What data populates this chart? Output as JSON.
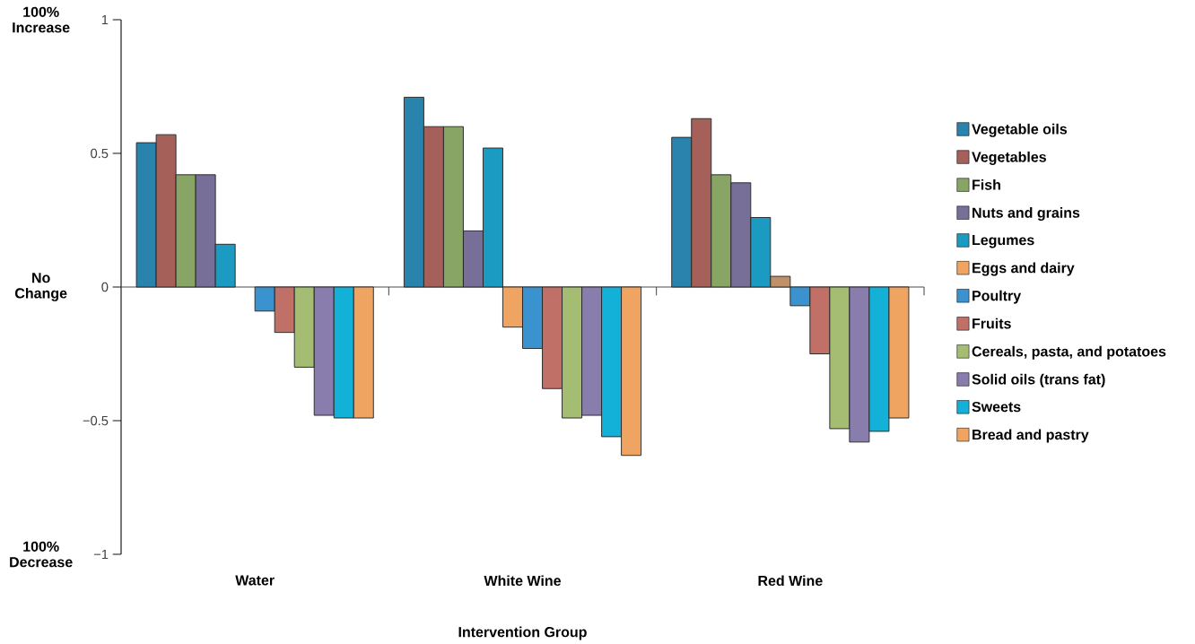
{
  "chart_data": {
    "type": "bar",
    "xlabel": "Intervention Group",
    "categories": [
      "Water",
      "White Wine",
      "Red Wine"
    ],
    "ylim": [
      -1,
      1
    ],
    "yticks": [
      1,
      0.5,
      0,
      {
        "value": -0.5,
        "label": "−0.5"
      },
      {
        "value": -1,
        "label": "−1"
      }
    ],
    "legend": "right",
    "annotations": [
      "100% Increase",
      "No Change",
      "100% Decrease"
    ],
    "series": [
      {
        "name": "Vegetable oils",
        "color": "#2a83ad",
        "values": [
          0.54,
          0.71,
          0.56
        ]
      },
      {
        "name": "Vegetables",
        "color": "#a5605a",
        "values": [
          0.57,
          0.6,
          0.63
        ]
      },
      {
        "name": "Fish",
        "color": "#88a565",
        "values": [
          0.42,
          0.6,
          0.42
        ]
      },
      {
        "name": "Nuts and grains",
        "color": "#776f97",
        "values": [
          0.42,
          0.21,
          0.39
        ]
      },
      {
        "name": "Legumes",
        "color": "#1b9bc2",
        "values": [
          0.16,
          0.52,
          0.26
        ]
      },
      {
        "name": "Eggs and dairy",
        "color": "#f0a462",
        "colors": [
          null,
          "#f0a462",
          "#c09068"
        ],
        "values": [
          null,
          -0.15,
          0.04
        ]
      },
      {
        "name": "Poultry",
        "color": "#3a93cf",
        "values": [
          -0.09,
          -0.23,
          -0.07
        ]
      },
      {
        "name": "Fruits",
        "color": "#c07066",
        "values": [
          -0.17,
          -0.38,
          -0.25
        ]
      },
      {
        "name": "Cereals, pasta, and potatoes",
        "color": "#a4bd73",
        "values": [
          -0.3,
          -0.49,
          -0.53
        ]
      },
      {
        "name": "Solid oils (trans fat)",
        "color": "#897dae",
        "values": [
          -0.48,
          -0.48,
          -0.58
        ]
      },
      {
        "name": "Sweets",
        "color": "#13b0d8",
        "values": [
          -0.49,
          -0.56,
          -0.54
        ]
      },
      {
        "name": "Bread and pastry",
        "color": "#f0a462",
        "values": [
          -0.49,
          -0.63,
          -0.49
        ]
      }
    ]
  }
}
